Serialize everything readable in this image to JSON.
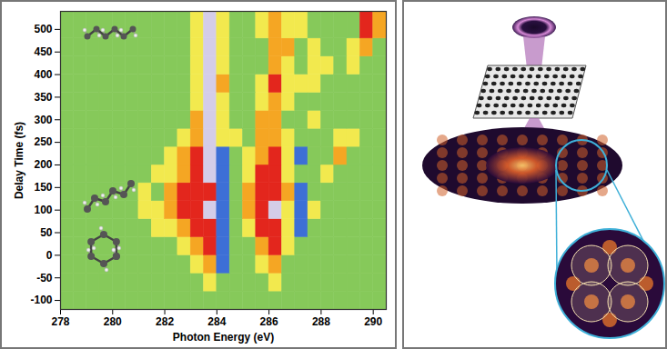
{
  "chart_data": {
    "type": "heatmap",
    "x_label": "Photon Energy (eV)",
    "y_label": "Delay Time (fs)",
    "xlim": [
      278,
      290.5
    ],
    "xticks": [
      278,
      280,
      282,
      284,
      286,
      288,
      290
    ],
    "ylim": [
      -120,
      540
    ],
    "yticks": [
      -100,
      -50,
      0,
      50,
      100,
      150,
      200,
      250,
      300,
      350,
      400,
      450,
      500
    ],
    "x_edges": [
      278,
      278.5,
      279,
      279.5,
      280,
      280.5,
      281,
      281.5,
      282,
      282.5,
      283,
      283.5,
      284,
      284.5,
      285,
      285.5,
      286,
      286.5,
      287,
      287.5,
      288,
      288.5,
      289,
      289.5,
      290,
      290.5
    ],
    "y_edges": [
      -120,
      -80,
      -40,
      0,
      40,
      80,
      120,
      160,
      200,
      240,
      280,
      320,
      360,
      400,
      440,
      480,
      540
    ],
    "levels": [
      -1,
      0,
      1,
      2,
      3,
      4
    ],
    "colors": [
      "#3d6fd6",
      "#86c95a",
      "#f2e94e",
      "#f5a623",
      "#e3261d",
      "#d4cde8"
    ],
    "z": [
      [
        0,
        0,
        0,
        0,
        0,
        0,
        0,
        0,
        0,
        0,
        0,
        0,
        0,
        0,
        0,
        0,
        0,
        0,
        0,
        0,
        0,
        0,
        0,
        0,
        0
      ],
      [
        0,
        0,
        0,
        0,
        0,
        0,
        0,
        0,
        0,
        0,
        0,
        1,
        0,
        0,
        0,
        0,
        1,
        0,
        0,
        0,
        0,
        0,
        0,
        0,
        0
      ],
      [
        0,
        0,
        0,
        0,
        0,
        0,
        0,
        0,
        0,
        0,
        1,
        2,
        -1,
        0,
        0,
        1,
        2,
        0,
        0,
        0,
        0,
        0,
        0,
        0,
        0
      ],
      [
        0,
        0,
        0,
        0,
        0,
        0,
        0,
        0,
        0,
        1,
        2,
        3,
        -1,
        0,
        0,
        2,
        3,
        1,
        0,
        0,
        0,
        0,
        0,
        0,
        0
      ],
      [
        0,
        0,
        0,
        0,
        0,
        0,
        0,
        1,
        1,
        2,
        3,
        3,
        -1,
        0,
        1,
        3,
        3,
        1,
        -1,
        0,
        0,
        0,
        0,
        0,
        0
      ],
      [
        0,
        0,
        0,
        0,
        0,
        0,
        1,
        1,
        2,
        3,
        3,
        4,
        -1,
        0,
        2,
        3,
        4,
        1,
        -1,
        1,
        0,
        0,
        0,
        0,
        0
      ],
      [
        0,
        0,
        0,
        0,
        0,
        0,
        1,
        0,
        2,
        3,
        3,
        3,
        -1,
        0,
        2,
        3,
        3,
        2,
        -1,
        0,
        0,
        0,
        0,
        0,
        0
      ],
      [
        0,
        0,
        0,
        0,
        0,
        0,
        0,
        1,
        1,
        2,
        3,
        4,
        -1,
        0,
        1,
        3,
        3,
        1,
        0,
        0,
        1,
        0,
        0,
        0,
        0
      ],
      [
        0,
        0,
        0,
        0,
        0,
        0,
        0,
        0,
        1,
        2,
        3,
        4,
        -1,
        0,
        1,
        2,
        3,
        1,
        -1,
        0,
        0,
        2,
        0,
        0,
        0
      ],
      [
        0,
        0,
        0,
        0,
        0,
        0,
        0,
        0,
        0,
        1,
        2,
        4,
        1,
        1,
        0,
        2,
        2,
        1,
        0,
        0,
        0,
        1,
        1,
        0,
        0
      ],
      [
        0,
        0,
        0,
        0,
        0,
        0,
        0,
        0,
        0,
        0,
        2,
        4,
        1,
        0,
        0,
        2,
        2,
        0,
        0,
        1,
        0,
        0,
        0,
        0,
        0
      ],
      [
        0,
        0,
        0,
        0,
        0,
        0,
        0,
        0,
        0,
        0,
        1,
        4,
        1,
        0,
        0,
        1,
        2,
        1,
        0,
        0,
        0,
        0,
        0,
        0,
        0
      ],
      [
        0,
        0,
        0,
        0,
        0,
        0,
        0,
        0,
        0,
        0,
        1,
        4,
        2,
        0,
        0,
        1,
        3,
        1,
        1,
        1,
        0,
        0,
        0,
        0,
        0
      ],
      [
        0,
        0,
        0,
        0,
        0,
        0,
        0,
        0,
        0,
        0,
        1,
        4,
        1,
        0,
        0,
        0,
        2,
        1,
        0,
        1,
        1,
        0,
        1,
        0,
        0
      ],
      [
        0,
        0,
        0,
        0,
        0,
        0,
        0,
        0,
        0,
        0,
        1,
        4,
        1,
        0,
        0,
        0,
        2,
        2,
        0,
        1,
        0,
        0,
        1,
        2,
        0
      ],
      [
        0,
        0,
        0,
        0,
        0,
        0,
        0,
        0,
        0,
        0,
        1,
        4,
        1,
        0,
        0,
        1,
        2,
        1,
        1,
        0,
        0,
        0,
        0,
        3,
        2
      ]
    ]
  }
}
